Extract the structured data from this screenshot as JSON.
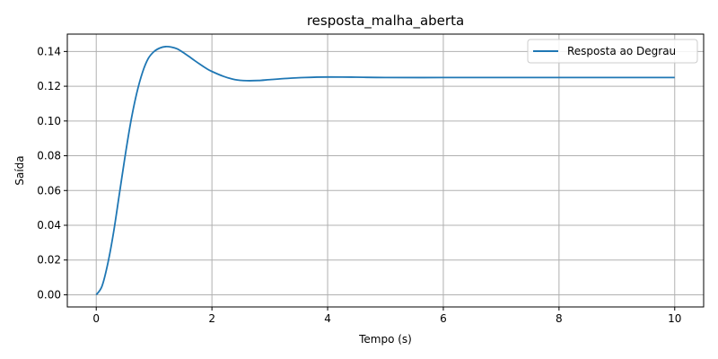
{
  "chart_data": {
    "type": "line",
    "title": "resposta_malha_aberta",
    "xlabel": "Tempo (s)",
    "ylabel": "Saída",
    "xlim": [
      -0.5,
      10.5
    ],
    "ylim": [
      -0.007,
      0.15
    ],
    "xticks": [
      0,
      2,
      4,
      6,
      8,
      10
    ],
    "xtick_labels": [
      "0",
      "2",
      "4",
      "6",
      "8",
      "10"
    ],
    "yticks": [
      0.0,
      0.02,
      0.04,
      0.06,
      0.08,
      0.1,
      0.12,
      0.14
    ],
    "ytick_labels": [
      "0.00",
      "0.02",
      "0.04",
      "0.06",
      "0.08",
      "0.10",
      "0.12",
      "0.14"
    ],
    "grid": true,
    "legend_position": "top-right",
    "series": [
      {
        "name": "Resposta ao Degrau",
        "color": "#1f77b4",
        "x": [
          0,
          0.1,
          0.2,
          0.3,
          0.4,
          0.5,
          0.6,
          0.7,
          0.8,
          0.9,
          1.0,
          1.1,
          1.2,
          1.3,
          1.4,
          1.5,
          1.6,
          1.7,
          1.8,
          1.9,
          2.0,
          2.2,
          2.4,
          2.6,
          2.8,
          3.0,
          3.3,
          3.6,
          4.0,
          4.5,
          5.0,
          6.0,
          7.0,
          8.0,
          9.0,
          10.0
        ],
        "y": [
          0.0,
          0.005,
          0.018,
          0.036,
          0.058,
          0.08,
          0.1,
          0.116,
          0.128,
          0.136,
          0.14,
          0.142,
          0.1428,
          0.1425,
          0.1415,
          0.1395,
          0.1372,
          0.1348,
          0.1325,
          0.1303,
          0.1285,
          0.1257,
          0.1238,
          0.1232,
          0.1233,
          0.1238,
          0.1245,
          0.125,
          0.1253,
          0.1252,
          0.125,
          0.125,
          0.125,
          0.125,
          0.125,
          0.125
        ]
      }
    ]
  }
}
